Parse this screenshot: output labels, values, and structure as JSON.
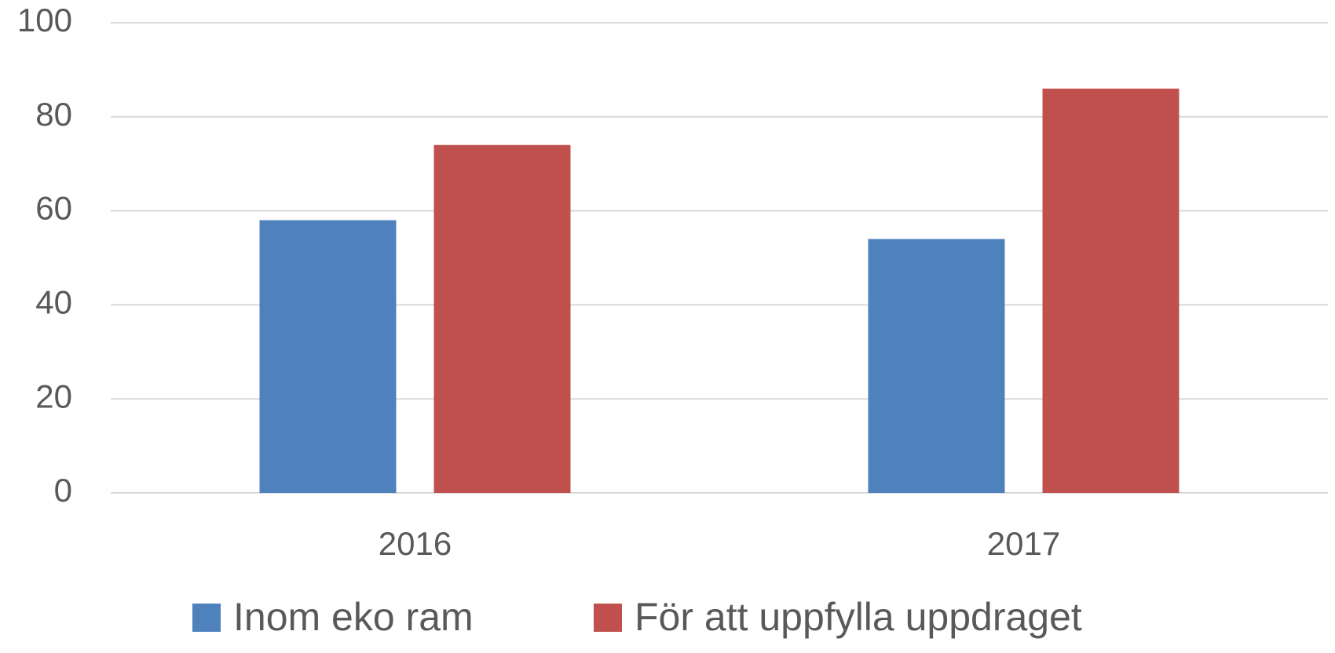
{
  "chart_data": {
    "type": "bar",
    "categories": [
      "2016",
      "2017"
    ],
    "series": [
      {
        "name": "Inom eko ram",
        "color": "#4f81bd",
        "values": [
          58,
          54
        ]
      },
      {
        "name": "För att uppfylla uppdraget",
        "color": "#c0504d",
        "values": [
          74,
          86
        ]
      }
    ],
    "ylim": [
      0,
      100
    ],
    "yticks": [
      0,
      20,
      40,
      60,
      80,
      100
    ],
    "grid": true,
    "legend": "bottom"
  }
}
